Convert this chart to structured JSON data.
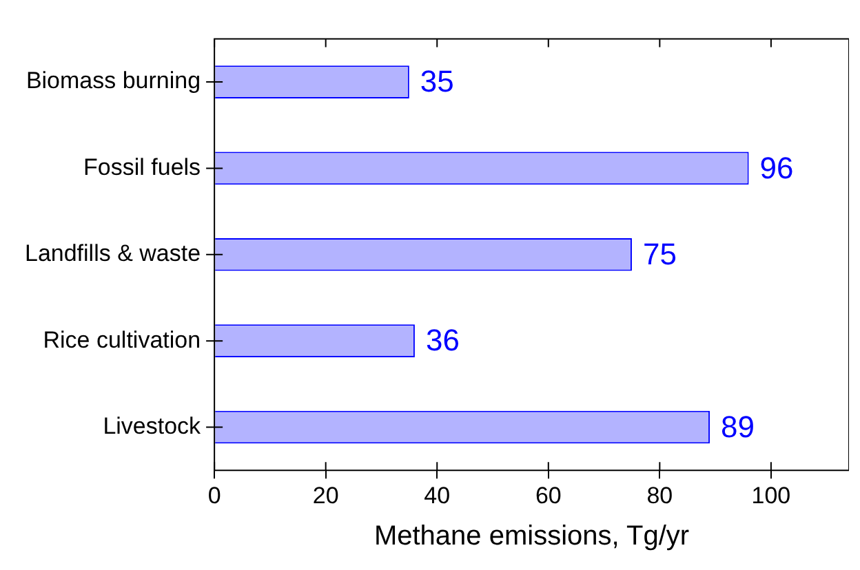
{
  "chart_data": {
    "type": "bar",
    "orientation": "horizontal",
    "xlabel": "Methane emissions, Tg/yr",
    "categories": [
      "Biomass burning",
      "Fossil fuels",
      "Landfills & waste",
      "Rice cultivation",
      "Livestock"
    ],
    "values": [
      35,
      96,
      75,
      36,
      89
    ],
    "color": "#b3b3ff",
    "data_labels": true,
    "xlim": [
      0,
      114
    ],
    "xticks": [
      0,
      20,
      40,
      60,
      80,
      100
    ],
    "grid": false,
    "legend": false
  }
}
